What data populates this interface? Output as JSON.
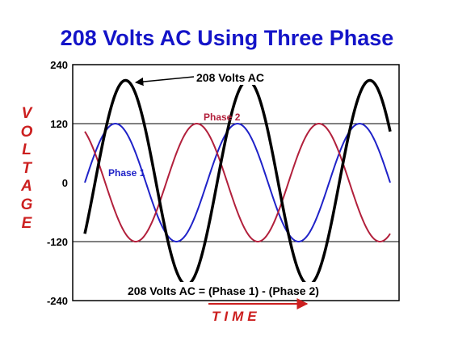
{
  "chart_data": {
    "type": "line",
    "title": "208 Volts AC Using Three Phase",
    "ylabel": "VOLTAGE",
    "xlabel": "TIME",
    "yticks": [
      "240",
      "120",
      "0",
      "-120",
      "-240"
    ],
    "ylim": [
      -240,
      240
    ],
    "gridlines_y": [
      120,
      -120
    ],
    "series": [
      {
        "name": "Phase 1",
        "amplitude": 120,
        "phase_deg": 0,
        "color": "#1f22c8"
      },
      {
        "name": "Phase 2",
        "amplitude": 120,
        "phase_deg": 120,
        "color": "#b2203c"
      },
      {
        "name": "208 Volts AC",
        "amplitude": 208,
        "phase_deg": -30,
        "color": "#000000"
      }
    ],
    "cycles": 2.5,
    "annotations": {
      "top_label": "208 Volts AC",
      "phase1_label": "Phase 1",
      "phase2_label": "Phase 2",
      "formula": "208 Volts AC = (Phase 1) - (Phase 2)"
    },
    "colors": {
      "title": "#1414c8",
      "axis_label": "#cc1f1f",
      "arrow": "#cc1f1f"
    }
  }
}
